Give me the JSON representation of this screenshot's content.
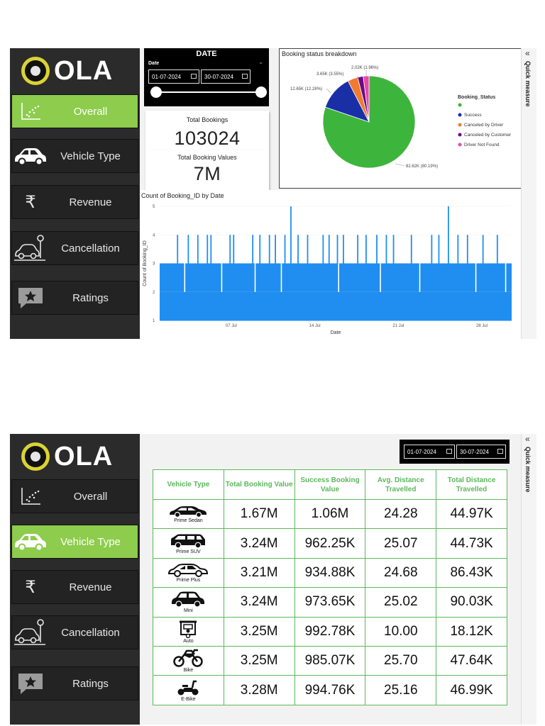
{
  "brand": {
    "name": "OLA"
  },
  "nav": [
    {
      "label": "Overall",
      "icon": "scatter-chart-icon"
    },
    {
      "label": "Vehicle Type",
      "icon": "car-icon"
    },
    {
      "label": "Revenue",
      "icon": "rupee-icon"
    },
    {
      "label": "Cancellation",
      "icon": "parking-car-icon"
    },
    {
      "label": "Ratings",
      "icon": "star-rating-icon"
    }
  ],
  "quick_measure": {
    "label": "Quick measure",
    "collapse_glyph": "«"
  },
  "overall": {
    "date_slicer": {
      "title": "DATE",
      "sub_label": "Date",
      "start": "01-07-2024",
      "end": "30-07-2024"
    },
    "cards": {
      "total_bookings": {
        "title": "Total Bookings",
        "value": "103024"
      },
      "total_booking_values": {
        "title": "Total Booking Values",
        "value": "7M"
      }
    },
    "pie": {
      "title": "Booking status breakdown",
      "legend_title": "Booking_Status",
      "legend": [
        "",
        "Success",
        "Canceled by Driver",
        "Canceled by Customer",
        "Driver Not Found"
      ],
      "labels": [
        "82.62K (80.19%)",
        "12.65K (12.28%)",
        "3.65K (3.55%)",
        "2.02K (1.96%)"
      ]
    },
    "line": {
      "title": "Count of Booking_ID by Date",
      "ylabel": "Count of Booking_ID",
      "xlabel": "Date"
    }
  },
  "chart_data": [
    {
      "type": "pie",
      "title": "Booking status breakdown",
      "legend_title": "Booking_Status",
      "legend_placement": "right",
      "slices": [
        {
          "label": "",
          "value": 82620,
          "percent": 80.19,
          "color": "#3db53d"
        },
        {
          "label": "Success",
          "value": 12650,
          "percent": 12.28,
          "color": "#1a2fa6"
        },
        {
          "label": "Canceled by Driver",
          "value": 3650,
          "percent": 3.55,
          "color": "#f07b2e"
        },
        {
          "label": "Canceled by Customer",
          "value": 2020,
          "percent": 1.96,
          "color": "#6a0a8a"
        },
        {
          "label": "Driver Not Found",
          "value": 2084,
          "percent": 2.02,
          "color": "#e94aa5"
        }
      ]
    },
    {
      "type": "line",
      "title": "Count of Booking_ID by Date",
      "xlabel": "Date",
      "ylabel": "Count of Booking_ID",
      "ylim": [
        1,
        5
      ],
      "yticks": [
        1,
        2,
        3,
        4,
        5
      ],
      "xlim_day": [
        1,
        30.5
      ],
      "xticks": [
        {
          "label": "07 Jul",
          "day": 7
        },
        {
          "label": "14 Jul",
          "day": 14
        },
        {
          "label": "21 Jul",
          "day": 21
        },
        {
          "label": "28 Jul",
          "day": 28
        }
      ],
      "baseline": 2,
      "typical_value": 3,
      "peaks": [
        {
          "day": 2.5,
          "value": 4
        },
        {
          "day": 3.4,
          "value": 4
        },
        {
          "day": 4.2,
          "value": 4
        },
        {
          "day": 5.0,
          "value": 4
        },
        {
          "day": 5.3,
          "value": 4
        },
        {
          "day": 6.9,
          "value": 4
        },
        {
          "day": 7.2,
          "value": 4
        },
        {
          "day": 8.8,
          "value": 4
        },
        {
          "day": 9.4,
          "value": 4
        },
        {
          "day": 10.2,
          "value": 4
        },
        {
          "day": 10.7,
          "value": 4
        },
        {
          "day": 11.5,
          "value": 4
        },
        {
          "day": 12.0,
          "value": 5
        },
        {
          "day": 12.6,
          "value": 4
        },
        {
          "day": 13.4,
          "value": 4
        },
        {
          "day": 14.7,
          "value": 4
        },
        {
          "day": 15.2,
          "value": 4
        },
        {
          "day": 15.9,
          "value": 4
        },
        {
          "day": 16.4,
          "value": 4
        },
        {
          "day": 17.6,
          "value": 4
        },
        {
          "day": 18.3,
          "value": 4
        },
        {
          "day": 19.2,
          "value": 4
        },
        {
          "day": 20.0,
          "value": 4
        },
        {
          "day": 20.6,
          "value": 4
        },
        {
          "day": 22.1,
          "value": 4
        },
        {
          "day": 23.8,
          "value": 4
        },
        {
          "day": 24.4,
          "value": 4
        },
        {
          "day": 25.2,
          "value": 5
        },
        {
          "day": 26.0,
          "value": 4
        },
        {
          "day": 26.8,
          "value": 4
        },
        {
          "day": 28.1,
          "value": 4
        },
        {
          "day": 29.3,
          "value": 4
        }
      ],
      "dips": [
        3.1,
        6.2,
        9.0,
        11.2,
        16.0,
        19.5,
        22.8,
        27.5,
        30.0
      ]
    }
  ],
  "vehicle": {
    "dates": {
      "start": "01-07-2024",
      "end": "30-07-2024"
    },
    "headers": [
      "Vehicle Type",
      "Total Booking Value",
      "Success Booking Value",
      "Avg. Distance Travelled",
      "Total Distance Travelled"
    ],
    "rows": [
      {
        "name": "Prime Sedan",
        "icon": "sedan-icon",
        "total": "1.67M",
        "success": "1.06M",
        "avg": "24.28",
        "dist": "44.97K"
      },
      {
        "name": "Prime SUV",
        "icon": "suv-icon",
        "total": "3.24M",
        "success": "962.25K",
        "avg": "25.07",
        "dist": "44.73K"
      },
      {
        "name": "Prime Plus",
        "icon": "hatchback-icon",
        "total": "3.21M",
        "success": "934.88K",
        "avg": "24.68",
        "dist": "86.43K"
      },
      {
        "name": "Mini",
        "icon": "mini-car-icon",
        "total": "3.24M",
        "success": "973.65K",
        "avg": "25.02",
        "dist": "90.03K"
      },
      {
        "name": "Auto",
        "icon": "auto-rickshaw-icon",
        "total": "3.25M",
        "success": "992.78K",
        "avg": "10.00",
        "dist": "18.12K"
      },
      {
        "name": "Bike",
        "icon": "motorbike-icon",
        "total": "3.25M",
        "success": "985.07K",
        "avg": "25.70",
        "dist": "47.64K"
      },
      {
        "name": "E-Bike",
        "icon": "scooter-icon",
        "total": "3.28M",
        "success": "994.76K",
        "avg": "25.16",
        "dist": "46.99K"
      }
    ]
  }
}
